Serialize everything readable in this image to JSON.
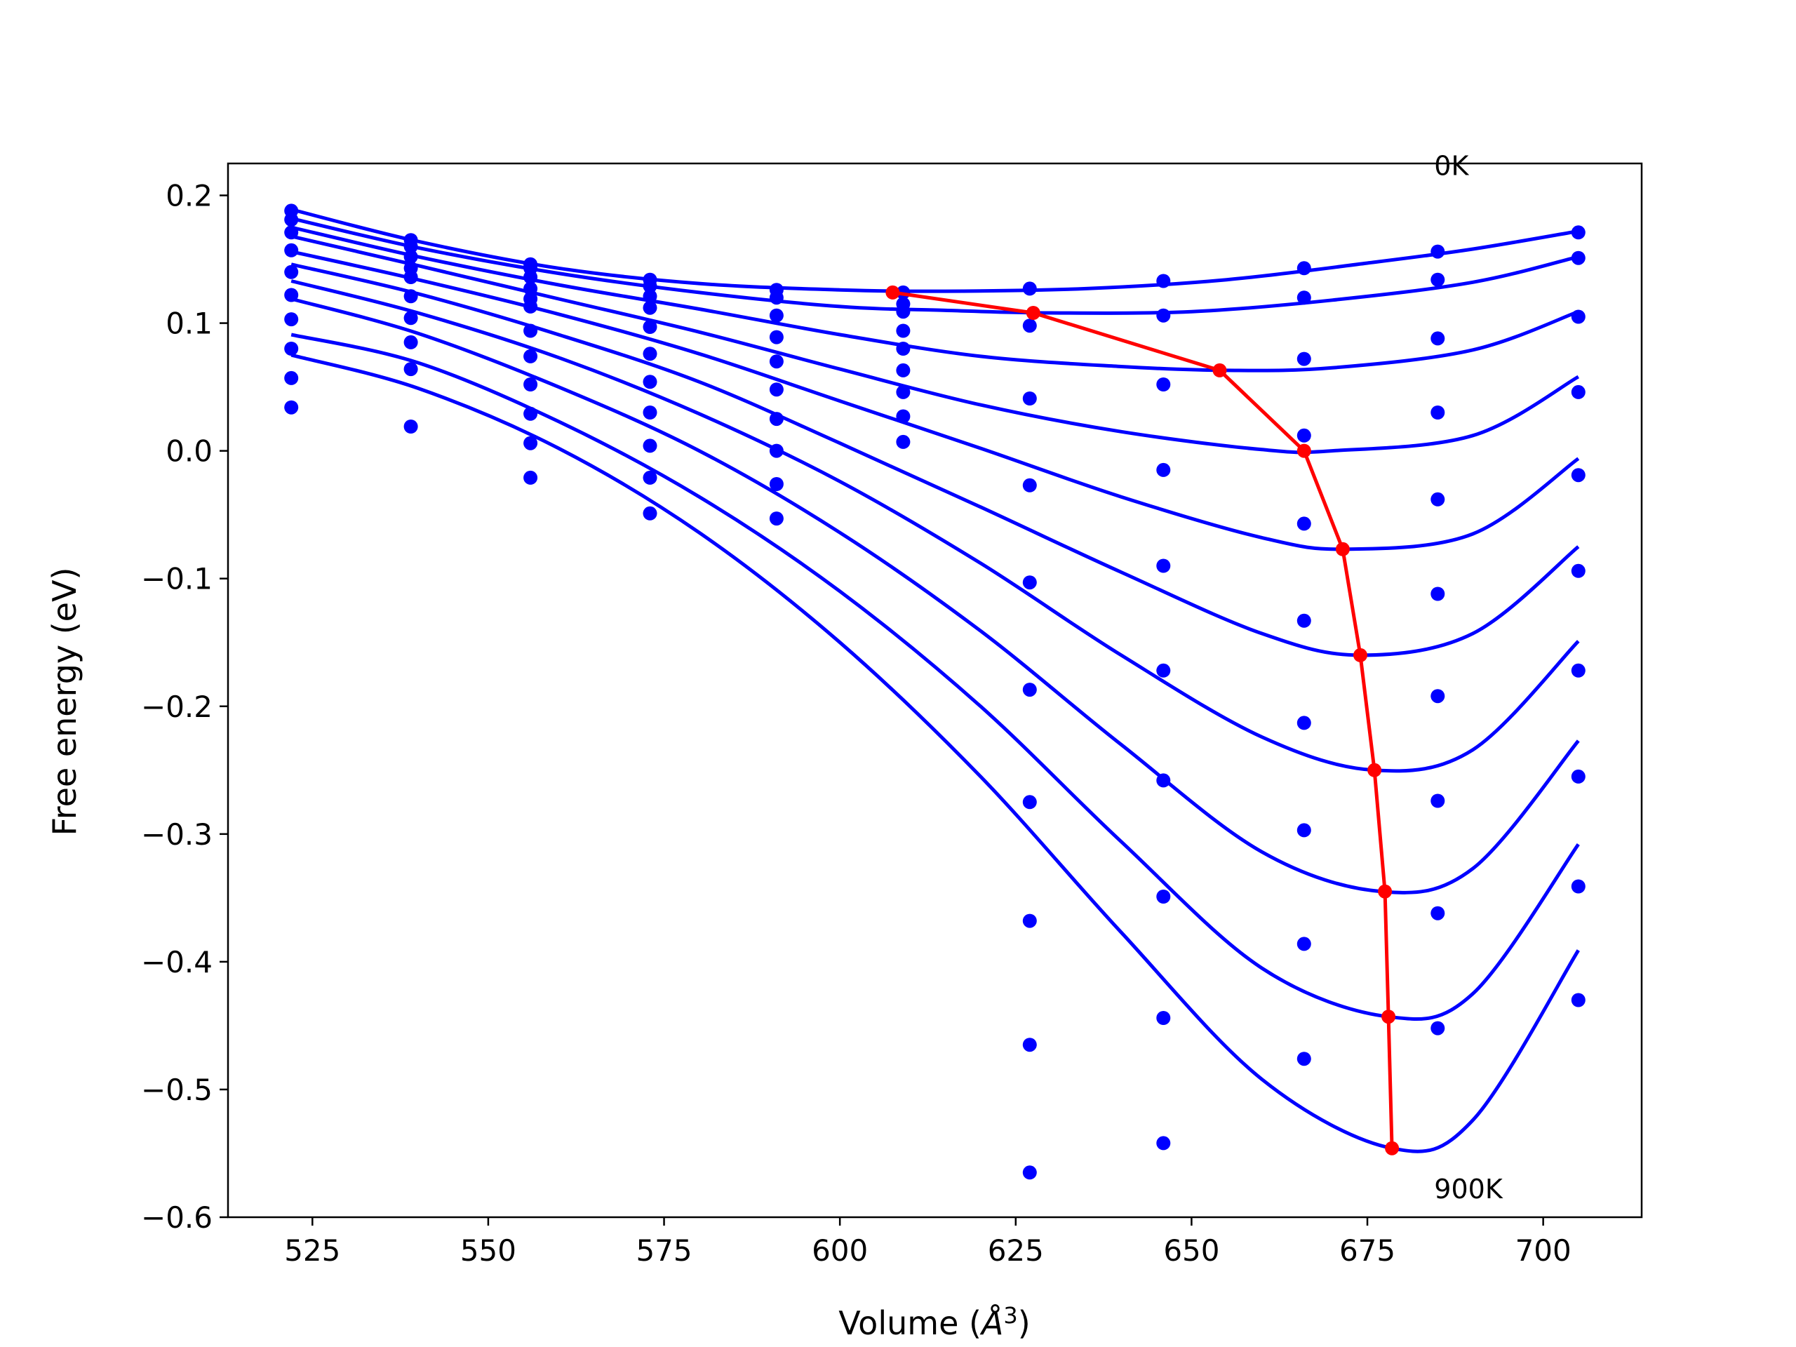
{
  "chart_data": {
    "type": "line",
    "xlabel_prefix": "Volume (",
    "xlabel_unit": "Å",
    "xlabel_exp": "3",
    "xlabel_suffix": ")",
    "ylabel": "Free energy (eV)",
    "xlim": [
      513,
      714
    ],
    "ylim": [
      -0.6,
      0.225
    ],
    "xticks": [
      525,
      550,
      575,
      600,
      625,
      650,
      675,
      700
    ],
    "xtick_labels": [
      "525",
      "550",
      "575",
      "600",
      "625",
      "650",
      "675",
      "700"
    ],
    "yticks": [
      -0.6,
      -0.5,
      -0.4,
      -0.3,
      -0.2,
      -0.1,
      0.0,
      0.1,
      0.2
    ],
    "ytick_labels": [
      "−0.6",
      "−0.5",
      "−0.4",
      "−0.3",
      "−0.2",
      "−0.1",
      "0.0",
      "0.1",
      "0.2"
    ],
    "grid": false,
    "annotations": [
      {
        "text": "0K",
        "x": 684.5,
        "y": 0.223
      },
      {
        "text": "900K",
        "x": 684.5,
        "y": -0.578
      }
    ],
    "colors": {
      "fit": "#0000ff",
      "points": "#0000ff",
      "minimum_path": "#ff0000"
    },
    "volumes": [
      522,
      539,
      556,
      573,
      591,
      609,
      627,
      646,
      666,
      685,
      705
    ],
    "series": [
      {
        "data_points": [
          0.188,
          0.165,
          0.146,
          0.134,
          0.126,
          0.124,
          0.127,
          0.133,
          0.143,
          0.156,
          0.171
        ],
        "fit": [
          [
            522,
            0.189
          ],
          [
            540,
            0.164
          ],
          [
            560,
            0.143
          ],
          [
            580,
            0.131
          ],
          [
            600,
            0.126
          ],
          [
            615,
            0.125
          ],
          [
            635,
            0.127
          ],
          [
            655,
            0.134
          ],
          [
            675,
            0.147
          ],
          [
            690,
            0.158
          ],
          [
            705,
            0.172
          ]
        ],
        "min": [
          607.5,
          0.124
        ]
      },
      {
        "data_points": [
          0.181,
          0.16,
          0.143,
          0.129,
          0.12,
          0.115,
          0.098,
          0.106,
          0.12,
          0.134,
          0.151
        ],
        "fit": [
          [
            522,
            0.182
          ],
          [
            540,
            0.159
          ],
          [
            560,
            0.139
          ],
          [
            580,
            0.124
          ],
          [
            600,
            0.113
          ],
          [
            615,
            0.11
          ],
          [
            630,
            0.108
          ],
          [
            650,
            0.109
          ],
          [
            670,
            0.118
          ],
          [
            690,
            0.132
          ],
          [
            705,
            0.152
          ]
        ],
        "min": [
          627.5,
          0.108
        ]
      },
      {
        "data_points": [
          0.171,
          0.152,
          0.136,
          0.121,
          0.106,
          0.094,
          0.041,
          0.052,
          0.072,
          0.088,
          0.105
        ],
        "fit": [
          [
            522,
            0.175
          ],
          [
            540,
            0.152
          ],
          [
            560,
            0.13
          ],
          [
            580,
            0.111
          ],
          [
            600,
            0.091
          ],
          [
            620,
            0.074
          ],
          [
            640,
            0.066
          ],
          [
            655,
            0.063
          ],
          [
            670,
            0.065
          ],
          [
            690,
            0.079
          ],
          [
            705,
            0.109
          ]
        ],
        "min": [
          654.0,
          0.063
        ]
      },
      {
        "data_points": [
          0.157,
          0.143,
          0.127,
          0.112,
          0.089,
          0.08,
          -0.027,
          -0.015,
          0.012,
          0.03,
          0.046
        ],
        "fit": [
          [
            522,
            0.168
          ],
          [
            540,
            0.145
          ],
          [
            560,
            0.119
          ],
          [
            580,
            0.093
          ],
          [
            600,
            0.064
          ],
          [
            620,
            0.036
          ],
          [
            640,
            0.015
          ],
          [
            660,
            0.001
          ],
          [
            670,
            0.0
          ],
          [
            690,
            0.012
          ],
          [
            705,
            0.058
          ]
        ],
        "min": [
          666.0,
          0.0
        ]
      },
      {
        "data_points": [
          0.14,
          0.136,
          0.119,
          0.097,
          0.07,
          0.063,
          -0.103,
          -0.09,
          -0.057,
          -0.038,
          -0.019
        ],
        "fit": [
          [
            522,
            0.156
          ],
          [
            540,
            0.134
          ],
          [
            560,
            0.107
          ],
          [
            580,
            0.076
          ],
          [
            600,
            0.039
          ],
          [
            620,
            0.002
          ],
          [
            640,
            -0.036
          ],
          [
            660,
            -0.068
          ],
          [
            672,
            -0.077
          ],
          [
            690,
            -0.065
          ],
          [
            705,
            -0.006
          ]
        ],
        "min": [
          671.5,
          -0.077
        ]
      },
      {
        "data_points": [
          0.122,
          0.121,
          0.113,
          0.076,
          0.048,
          0.046,
          -0.187,
          -0.172,
          -0.133,
          -0.112,
          -0.094
        ],
        "fit": [
          [
            522,
            0.146
          ],
          [
            540,
            0.123
          ],
          [
            560,
            0.091
          ],
          [
            580,
            0.054
          ],
          [
            600,
            0.006
          ],
          [
            620,
            -0.044
          ],
          [
            640,
            -0.095
          ],
          [
            660,
            -0.143
          ],
          [
            674,
            -0.16
          ],
          [
            690,
            -0.143
          ],
          [
            705,
            -0.075
          ]
        ],
        "min": [
          674.0,
          -0.16
        ]
      },
      {
        "data_points": [
          0.103,
          0.104,
          0.094,
          0.054,
          0.025,
          0.027,
          -0.275,
          -0.258,
          -0.213,
          -0.192,
          -0.172
        ],
        "fit": [
          [
            522,
            0.133
          ],
          [
            540,
            0.108
          ],
          [
            560,
            0.073
          ],
          [
            580,
            0.029
          ],
          [
            600,
            -0.024
          ],
          [
            620,
            -0.088
          ],
          [
            640,
            -0.16
          ],
          [
            660,
            -0.224
          ],
          [
            676,
            -0.25
          ],
          [
            690,
            -0.234
          ],
          [
            705,
            -0.149
          ]
        ],
        "min": [
          676.0,
          -0.25
        ]
      },
      {
        "data_points": [
          0.08,
          0.085,
          0.074,
          0.03,
          0.0,
          0.007,
          -0.368,
          -0.349,
          -0.297,
          -0.274,
          -0.255
        ],
        "fit": [
          [
            522,
            0.119
          ],
          [
            540,
            0.092
          ],
          [
            560,
            0.05
          ],
          [
            580,
            0.0
          ],
          [
            600,
            -0.064
          ],
          [
            620,
            -0.141
          ],
          [
            640,
            -0.23
          ],
          [
            660,
            -0.314
          ],
          [
            677,
            -0.345
          ],
          [
            690,
            -0.327
          ],
          [
            705,
            -0.227
          ]
        ],
        "min": [
          677.5,
          -0.345
        ]
      },
      {
        "data_points": [
          0.057,
          0.064,
          0.052,
          0.004,
          -0.026,
          null,
          -0.465,
          -0.444,
          -0.386,
          -0.362,
          -0.341
        ],
        "fit": [
          [
            522,
            0.091
          ],
          [
            540,
            0.069
          ],
          [
            560,
            0.023
          ],
          [
            580,
            -0.036
          ],
          [
            600,
            -0.11
          ],
          [
            620,
            -0.2
          ],
          [
            640,
            -0.306
          ],
          [
            660,
            -0.405
          ],
          [
            678,
            -0.443
          ],
          [
            690,
            -0.425
          ],
          [
            705,
            -0.308
          ]
        ],
        "min": [
          678.0,
          -0.443
        ]
      },
      {
        "data_points": [
          0.034,
          0.019,
          0.029,
          -0.021,
          -0.053,
          null,
          -0.565,
          -0.542,
          -0.476,
          -0.452,
          -0.43
        ],
        "fit": [
          [
            522,
            0.075
          ],
          [
            540,
            0.049
          ],
          [
            560,
            0.002
          ],
          [
            580,
            -0.064
          ],
          [
            600,
            -0.15
          ],
          [
            620,
            -0.255
          ],
          [
            640,
            -0.377
          ],
          [
            660,
            -0.492
          ],
          [
            678.5,
            -0.546
          ],
          [
            690,
            -0.524
          ],
          [
            705,
            -0.391
          ]
        ],
        "min": [
          678.5,
          -0.546
        ]
      }
    ],
    "scatter_extra": [
      [
        609,
        0.109
      ],
      [
        556,
        0.006
      ],
      [
        556,
        -0.021
      ],
      [
        573,
        -0.049
      ]
    ]
  }
}
